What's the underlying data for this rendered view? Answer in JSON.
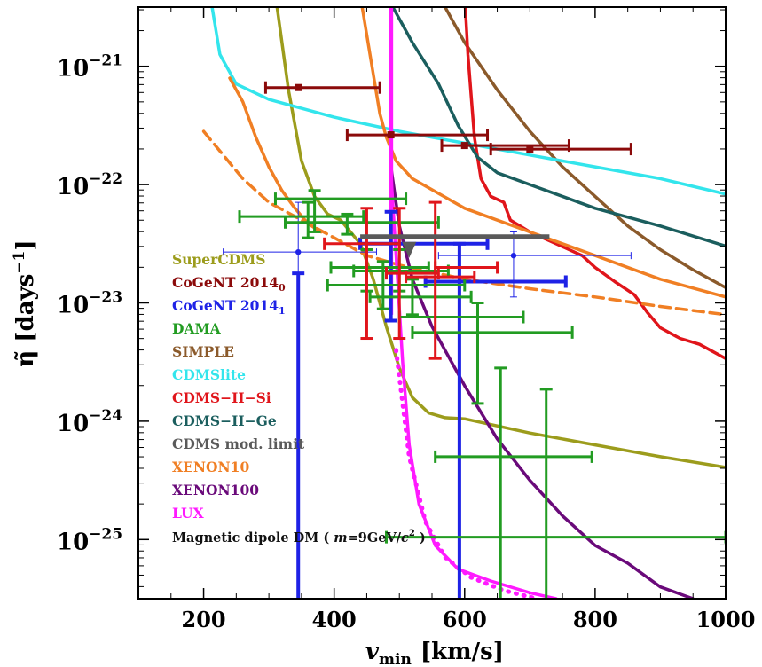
{
  "chart_data": {
    "type": "line",
    "title": "",
    "xlabel": "v_min",
    "xlabel_sub": "min",
    "xlabel_unit": "[km/s]",
    "ylabel": "η̃ [days",
    "ylabel_sup": "−1",
    "ylabel_close": "]",
    "xlim": [
      100,
      1000
    ],
    "ylim_log10": [
      -25.5,
      -20.5
    ],
    "yscale": "log",
    "x_ticks": [
      {
        "value": 200,
        "label": "200"
      },
      {
        "value": 400,
        "label": "400"
      },
      {
        "value": 600,
        "label": "600"
      },
      {
        "value": 800,
        "label": "800"
      },
      {
        "value": 1000,
        "label": "1000"
      }
    ],
    "y_ticks": [
      {
        "exp": -21,
        "base": "10",
        "sup": "−21"
      },
      {
        "exp": -22,
        "base": "10",
        "sup": "−22"
      },
      {
        "exp": -23,
        "base": "10",
        "sup": "−23"
      },
      {
        "exp": -24,
        "base": "10",
        "sup": "−24"
      },
      {
        "exp": -25,
        "base": "10",
        "sup": "−25"
      }
    ],
    "curves": [
      {
        "id": "supercdms",
        "color": "#9c9c1c",
        "dash": false,
        "points": [
          [
            310,
            -20.4
          ],
          [
            330,
            -21.2
          ],
          [
            350,
            -21.8
          ],
          [
            370,
            -22.1
          ],
          [
            390,
            -22.25
          ],
          [
            410,
            -22.3
          ],
          [
            440,
            -22.5
          ],
          [
            460,
            -22.8
          ],
          [
            480,
            -23.2
          ],
          [
            500,
            -23.55
          ],
          [
            520,
            -23.8
          ],
          [
            545,
            -23.93
          ],
          [
            570,
            -23.97
          ],
          [
            600,
            -23.98
          ],
          [
            700,
            -24.1
          ],
          [
            800,
            -24.2
          ],
          [
            900,
            -24.3
          ],
          [
            1000,
            -24.39
          ]
        ]
      },
      {
        "id": "simple",
        "color": "#8b5a2b",
        "dash": false,
        "points": [
          [
            560,
            -20.4
          ],
          [
            600,
            -20.8
          ],
          [
            650,
            -21.2
          ],
          [
            700,
            -21.55
          ],
          [
            750,
            -21.85
          ],
          [
            800,
            -22.1
          ],
          [
            850,
            -22.35
          ],
          [
            900,
            -22.55
          ],
          [
            950,
            -22.72
          ],
          [
            1000,
            -22.87
          ]
        ]
      },
      {
        "id": "cdmslite",
        "color": "#33e5ec",
        "dash": false,
        "points": [
          [
            210,
            -20.4
          ],
          [
            225,
            -20.9
          ],
          [
            250,
            -21.15
          ],
          [
            300,
            -21.28
          ],
          [
            400,
            -21.43
          ],
          [
            500,
            -21.55
          ],
          [
            600,
            -21.65
          ],
          [
            700,
            -21.75
          ],
          [
            800,
            -21.85
          ],
          [
            900,
            -21.95
          ],
          [
            1000,
            -22.08
          ]
        ]
      },
      {
        "id": "cdms2si",
        "color": "#e0151b",
        "dash": false,
        "points": [
          [
            600,
            -20.4
          ],
          [
            605,
            -20.9
          ],
          [
            615,
            -21.6
          ],
          [
            625,
            -21.95
          ],
          [
            640,
            -22.1
          ],
          [
            660,
            -22.15
          ],
          [
            670,
            -22.3
          ],
          [
            700,
            -22.4
          ],
          [
            740,
            -22.5
          ],
          [
            780,
            -22.6
          ],
          [
            800,
            -22.7
          ],
          [
            830,
            -22.82
          ],
          [
            860,
            -22.93
          ],
          [
            880,
            -23.08
          ],
          [
            900,
            -23.21
          ],
          [
            930,
            -23.3
          ],
          [
            960,
            -23.35
          ],
          [
            1000,
            -23.47
          ]
        ]
      },
      {
        "id": "cdms2ge",
        "color": "#1b5e5e",
        "dash": false,
        "points": [
          [
            480,
            -20.4
          ],
          [
            520,
            -20.8
          ],
          [
            560,
            -21.15
          ],
          [
            590,
            -21.5
          ],
          [
            620,
            -21.77
          ],
          [
            650,
            -21.9
          ],
          [
            700,
            -22.0
          ],
          [
            800,
            -22.2
          ],
          [
            900,
            -22.35
          ],
          [
            1000,
            -22.52
          ]
        ]
      },
      {
        "id": "xenon10_solid",
        "color": "#f07f24",
        "dash": false,
        "points": [
          [
            440,
            -20.4
          ],
          [
            455,
            -20.9
          ],
          [
            470,
            -21.4
          ],
          [
            480,
            -21.6
          ],
          [
            495,
            -21.8
          ],
          [
            520,
            -21.95
          ],
          [
            600,
            -22.2
          ],
          [
            700,
            -22.4
          ],
          [
            800,
            -22.6
          ],
          [
            900,
            -22.8
          ],
          [
            1000,
            -22.95
          ]
        ]
      },
      {
        "id": "xenon10_orange_lower",
        "color": "#f07f24",
        "dash": false,
        "points": [
          [
            240,
            -21.1
          ],
          [
            260,
            -21.3
          ],
          [
            280,
            -21.6
          ],
          [
            300,
            -21.85
          ],
          [
            320,
            -22.05
          ],
          [
            340,
            -22.2
          ],
          [
            360,
            -22.33
          ],
          [
            380,
            -22.4
          ]
        ]
      },
      {
        "id": "xenon10_dashed",
        "color": "#f07f24",
        "dash": true,
        "points": [
          [
            200,
            -21.55
          ],
          [
            230,
            -21.75
          ],
          [
            260,
            -21.95
          ],
          [
            300,
            -22.15
          ],
          [
            350,
            -22.3
          ],
          [
            400,
            -22.45
          ],
          [
            450,
            -22.6
          ],
          [
            500,
            -22.68
          ],
          [
            600,
            -22.8
          ],
          [
            700,
            -22.88
          ],
          [
            800,
            -22.95
          ],
          [
            900,
            -23.03
          ],
          [
            1000,
            -23.1
          ]
        ]
      },
      {
        "id": "xenon100",
        "color": "#6a0a7a",
        "dash": false,
        "points": [
          [
            487,
            -21.85
          ],
          [
            500,
            -22.35
          ],
          [
            520,
            -22.8
          ],
          [
            550,
            -23.2
          ],
          [
            600,
            -23.7
          ],
          [
            650,
            -24.15
          ],
          [
            700,
            -24.5
          ],
          [
            750,
            -24.8
          ],
          [
            800,
            -25.05
          ],
          [
            850,
            -25.2
          ],
          [
            900,
            -25.4
          ],
          [
            950,
            -25.5
          ]
        ]
      },
      {
        "id": "lux_solid",
        "color": "#ff1aff",
        "dash": false,
        "points": [
          [
            487,
            -21.9
          ],
          [
            495,
            -22.6
          ],
          [
            505,
            -23.5
          ],
          [
            515,
            -24.2
          ],
          [
            530,
            -24.7
          ],
          [
            555,
            -25.05
          ],
          [
            590,
            -25.25
          ],
          [
            640,
            -25.35
          ],
          [
            700,
            -25.45
          ],
          [
            740,
            -25.5
          ]
        ]
      },
      {
        "id": "lux_dotted",
        "color": "#ff1aff",
        "dash": "dot",
        "points": [
          [
            495,
            -23.4
          ],
          [
            515,
            -24.3
          ],
          [
            540,
            -24.85
          ],
          [
            570,
            -25.15
          ],
          [
            610,
            -25.32
          ],
          [
            660,
            -25.43
          ],
          [
            710,
            -25.5
          ]
        ]
      }
    ],
    "vertical_lines": [
      {
        "id": "lux-vertical",
        "color": "#ff1aff",
        "x": 487,
        "y_from": -20.4,
        "y_to": -23.1
      }
    ],
    "errorbars": [
      {
        "series": "CoGeNT 2014_0",
        "color": "#8b0a0a",
        "x": 345,
        "xerr": [
          295,
          470
        ],
        "y": -21.18,
        "ylo": -21.18,
        "yhi": -21.18,
        "w": 3
      },
      {
        "series": "CoGeNT 2014_0",
        "color": "#8b0a0a",
        "x": 487,
        "xerr": [
          420,
          635
        ],
        "y": -21.58,
        "ylo": -21.58,
        "yhi": -21.58,
        "w": 3
      },
      {
        "series": "CoGeNT 2014_0",
        "color": "#8b0a0a",
        "x": 600,
        "xerr": [
          565,
          760
        ],
        "y": -21.67,
        "ylo": -21.67,
        "yhi": -21.67,
        "w": 3
      },
      {
        "series": "CoGeNT 2014_0",
        "color": "#8b0a0a",
        "x": 700,
        "xerr": [
          640,
          855
        ],
        "y": -21.7,
        "ylo": -21.7,
        "yhi": -21.7,
        "w": 3
      },
      {
        "series": "CoGeNT 2014_1",
        "color": "#1e22e6",
        "x": 345,
        "xerr": [
          230,
          465
        ],
        "y": -22.57,
        "ylo": -25.5,
        "yhi": -22.15,
        "w": 1
      },
      {
        "series": "CoGeNT 2014_1",
        "color": "#1e22e6",
        "x": 675,
        "xerr": [
          560,
          855
        ],
        "y": -22.6,
        "ylo": -22.95,
        "yhi": -22.4,
        "w": 1
      },
      {
        "series": "CoGeNT 2014_1",
        "color": "#1e22e6",
        "x": 345,
        "xerr": [
          345,
          345
        ],
        "y": -22.57,
        "ylo": -25.5,
        "yhi": -22.75,
        "w": 4
      },
      {
        "series": "CoGeNT 2014_1",
        "color": "#1e22e6",
        "x": 487,
        "xerr": [
          440,
          635
        ],
        "y": -22.5,
        "ylo": -23.15,
        "yhi": -22.23,
        "w": 4
      },
      {
        "series": "CoGeNT 2014_1",
        "color": "#1e22e6",
        "x": 592,
        "xerr": [
          540,
          755
        ],
        "y": -22.82,
        "ylo": -25.5,
        "yhi": -22.5,
        "w": 4
      },
      {
        "series": "DAMA",
        "color": "#229c22",
        "x": 370,
        "xerr": [
          310,
          510
        ],
        "y": -22.12,
        "ylo": -22.4,
        "yhi": -22.05,
        "w": 3
      },
      {
        "series": "DAMA",
        "color": "#229c22",
        "x": 360,
        "xerr": [
          255,
          445
        ],
        "y": -22.27,
        "ylo": -22.45,
        "yhi": -22.15,
        "w": 3
      },
      {
        "series": "DAMA",
        "color": "#229c22",
        "x": 420,
        "xerr": [
          325,
          560
        ],
        "y": -22.32,
        "ylo": -22.42,
        "yhi": -22.25,
        "w": 3
      },
      {
        "series": "DAMA",
        "color": "#229c22",
        "x": 450,
        "xerr": [
          395,
          545
        ],
        "y": -22.7,
        "ylo": -22.9,
        "yhi": -22.55,
        "w": 3
      },
      {
        "series": "DAMA",
        "color": "#229c22",
        "x": 475,
        "xerr": [
          390,
          600
        ],
        "y": -22.85,
        "ylo": -23.05,
        "yhi": -22.65,
        "w": 3
      },
      {
        "series": "DAMA",
        "color": "#229c22",
        "x": 500,
        "xerr": [
          430,
          575
        ],
        "y": -22.73,
        "ylo": -22.9,
        "yhi": -22.55,
        "w": 3
      },
      {
        "series": "DAMA",
        "color": "#229c22",
        "x": 520,
        "xerr": [
          455,
          610
        ],
        "y": -22.95,
        "ylo": -23.1,
        "yhi": -22.8,
        "w": 3
      },
      {
        "series": "DAMA",
        "color": "#229c22",
        "x": 620,
        "xerr": [
          500,
          690
        ],
        "y": -23.12,
        "ylo": -23.85,
        "yhi": -23.0,
        "w": 3
      },
      {
        "series": "DAMA",
        "color": "#229c22",
        "x": 655,
        "xerr": [
          520,
          765
        ],
        "y": -23.25,
        "ylo": -25.5,
        "yhi": -23.55,
        "w": 3
      },
      {
        "series": "DAMA",
        "color": "#229c22",
        "x": 725,
        "xerr": [
          555,
          795
        ],
        "y": -24.3,
        "ylo": -25.5,
        "yhi": -23.73,
        "w": 3
      },
      {
        "series": "DAMA",
        "color": "#229c22",
        "x": 725,
        "xerr": [
          480,
          1000
        ],
        "y": -24.98,
        "ylo": -24.98,
        "yhi": -24.98,
        "w": 3
      },
      {
        "series": "CDMS-II-Si",
        "color": "#e0151b",
        "x": 450,
        "xerr": [
          385,
          500
        ],
        "y": -22.5,
        "ylo": -23.3,
        "yhi": -22.2,
        "w": 3
      },
      {
        "series": "CDMS-II-Si",
        "color": "#e0151b",
        "x": 500,
        "xerr": [
          480,
          560
        ],
        "y": -22.75,
        "ylo": -23.3,
        "yhi": -22.2,
        "w": 3
      },
      {
        "series": "CDMS-II-Si",
        "color": "#e0151b",
        "x": 555,
        "xerr": [
          510,
          615
        ],
        "y": -22.78,
        "ylo": -23.47,
        "yhi": -22.15,
        "w": 3
      },
      {
        "series": "CDMS-II-Si",
        "color": "#e0151b",
        "x": 590,
        "xerr": [
          555,
          650
        ],
        "y": -22.7,
        "ylo": -22.7,
        "yhi": -22.7,
        "w": 3
      }
    ],
    "cdms_mod_limit": {
      "color": "#5a5a5a",
      "x1": 440,
      "x2": 730,
      "y": -22.44,
      "arrow_x": 515
    },
    "legend": {
      "placement": "left",
      "entries": [
        {
          "label": "SuperCDMS",
          "color": "#9c9c1c"
        },
        {
          "label": "CoGeNT 2014",
          "sub": "0",
          "color": "#8b0a0a"
        },
        {
          "label": "CoGeNT 2014",
          "sub": "1",
          "color": "#1e22e6"
        },
        {
          "label": "DAMA",
          "color": "#229c22"
        },
        {
          "label": "SIMPLE",
          "color": "#8b5a2b"
        },
        {
          "label": "CDMSlite",
          "color": "#33e5ec"
        },
        {
          "label": "CDMS−II−Si",
          "color": "#e0151b"
        },
        {
          "label": "CDMS−II−Ge",
          "color": "#1b5e5e"
        },
        {
          "label": "CDMS mod. limit",
          "color": "#5a5a5a"
        },
        {
          "label": "XENON10",
          "color": "#f07f24"
        },
        {
          "label": "XENON100",
          "color": "#6a0a7a"
        },
        {
          "label": "LUX",
          "color": "#ff1aff"
        }
      ]
    },
    "annotation": {
      "prefix": "Magnetic dipole DM ( ",
      "m": "m",
      "mid": "=9GeV/",
      "c": "c",
      "sup": "2",
      "suffix": " )",
      "color": "#111111"
    }
  }
}
